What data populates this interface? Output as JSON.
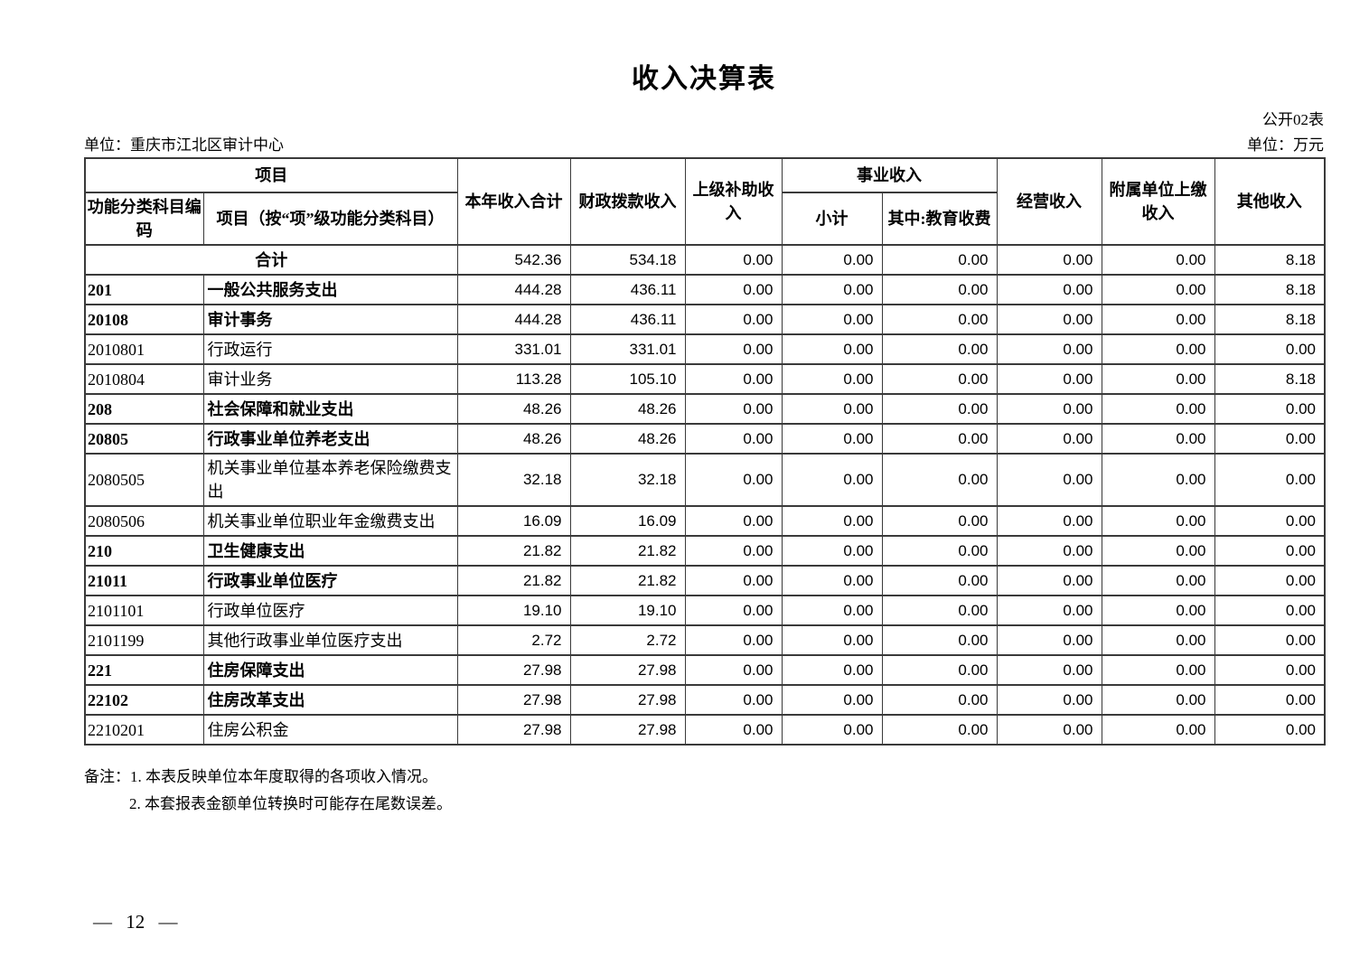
{
  "page": {
    "title": "收入决算表",
    "table_code": "公开02表",
    "org_unit": "单位：重庆市江北区审计中心",
    "currency_unit": "单位：万元",
    "page_number": "— 12 —",
    "notes": [
      "备注：1. 本表反映单位本年度取得的各项收入情况。",
      "2. 本套报表金额单位转换时可能存在尾数误差。"
    ]
  },
  "table": {
    "headers": {
      "project": "项目",
      "code": "功能分类科目编码",
      "item": "项目（按“项”级功能分类科目）",
      "total": "本年收入合计",
      "fiscal": "财政拨款收入",
      "superior": "上级补助收入",
      "business": "事业收入",
      "subtotal": "小计",
      "education": "其中:教育收费",
      "operating": "经营收入",
      "affiliated": "附属单位上缴收入",
      "other": "其他收入"
    },
    "rows": [
      {
        "code": "",
        "name": "合计",
        "merged": true,
        "bold": true,
        "values": [
          "542.36",
          "534.18",
          "0.00",
          "0.00",
          "0.00",
          "0.00",
          "0.00",
          "8.18"
        ]
      },
      {
        "code": "201",
        "name": "一般公共服务支出",
        "bold": true,
        "values": [
          "444.28",
          "436.11",
          "0.00",
          "0.00",
          "0.00",
          "0.00",
          "0.00",
          "8.18"
        ]
      },
      {
        "code": "20108",
        "name": "审计事务",
        "bold": true,
        "values": [
          "444.28",
          "436.11",
          "0.00",
          "0.00",
          "0.00",
          "0.00",
          "0.00",
          "8.18"
        ]
      },
      {
        "code": "2010801",
        "name": "行政运行",
        "bold": false,
        "values": [
          "331.01",
          "331.01",
          "0.00",
          "0.00",
          "0.00",
          "0.00",
          "0.00",
          "0.00"
        ]
      },
      {
        "code": "2010804",
        "name": "审计业务",
        "bold": false,
        "values": [
          "113.28",
          "105.10",
          "0.00",
          "0.00",
          "0.00",
          "0.00",
          "0.00",
          "8.18"
        ]
      },
      {
        "code": "208",
        "name": "社会保障和就业支出",
        "bold": true,
        "values": [
          "48.26",
          "48.26",
          "0.00",
          "0.00",
          "0.00",
          "0.00",
          "0.00",
          "0.00"
        ]
      },
      {
        "code": "20805",
        "name": "行政事业单位养老支出",
        "bold": true,
        "values": [
          "48.26",
          "48.26",
          "0.00",
          "0.00",
          "0.00",
          "0.00",
          "0.00",
          "0.00"
        ]
      },
      {
        "code": "2080505",
        "name": "机关事业单位基本养老保险缴费支出",
        "bold": false,
        "values": [
          "32.18",
          "32.18",
          "0.00",
          "0.00",
          "0.00",
          "0.00",
          "0.00",
          "0.00"
        ]
      },
      {
        "code": "2080506",
        "name": "机关事业单位职业年金缴费支出",
        "bold": false,
        "values": [
          "16.09",
          "16.09",
          "0.00",
          "0.00",
          "0.00",
          "0.00",
          "0.00",
          "0.00"
        ]
      },
      {
        "code": "210",
        "name": "卫生健康支出",
        "bold": true,
        "values": [
          "21.82",
          "21.82",
          "0.00",
          "0.00",
          "0.00",
          "0.00",
          "0.00",
          "0.00"
        ]
      },
      {
        "code": "21011",
        "name": "行政事业单位医疗",
        "bold": true,
        "values": [
          "21.82",
          "21.82",
          "0.00",
          "0.00",
          "0.00",
          "0.00",
          "0.00",
          "0.00"
        ]
      },
      {
        "code": "2101101",
        "name": "行政单位医疗",
        "bold": false,
        "values": [
          "19.10",
          "19.10",
          "0.00",
          "0.00",
          "0.00",
          "0.00",
          "0.00",
          "0.00"
        ]
      },
      {
        "code": "2101199",
        "name": "其他行政事业单位医疗支出",
        "bold": false,
        "values": [
          "2.72",
          "2.72",
          "0.00",
          "0.00",
          "0.00",
          "0.00",
          "0.00",
          "0.00"
        ]
      },
      {
        "code": "221",
        "name": "住房保障支出",
        "bold": true,
        "values": [
          "27.98",
          "27.98",
          "0.00",
          "0.00",
          "0.00",
          "0.00",
          "0.00",
          "0.00"
        ]
      },
      {
        "code": "22102",
        "name": "住房改革支出",
        "bold": true,
        "values": [
          "27.98",
          "27.98",
          "0.00",
          "0.00",
          "0.00",
          "0.00",
          "0.00",
          "0.00"
        ]
      },
      {
        "code": "2210201",
        "name": "住房公积金",
        "bold": false,
        "values": [
          "27.98",
          "27.98",
          "0.00",
          "0.00",
          "0.00",
          "0.00",
          "0.00",
          "0.00"
        ]
      }
    ]
  }
}
